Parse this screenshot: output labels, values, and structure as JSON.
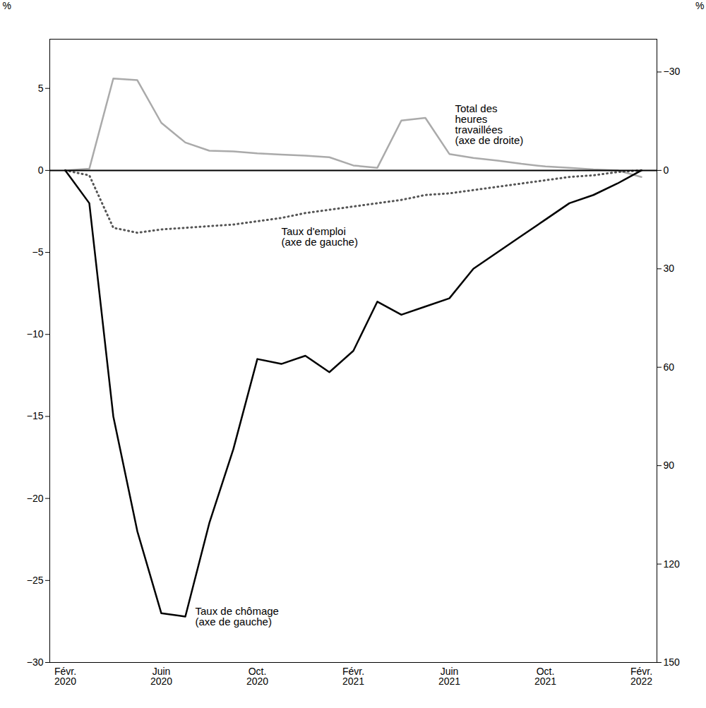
{
  "chart_data": {
    "type": "line",
    "categories": [
      "Févr.\n2020",
      null,
      null,
      null,
      "Juin\n2020",
      null,
      null,
      null,
      "Oct.\n2020",
      null,
      null,
      null,
      "Févr.\n2021",
      null,
      null,
      null,
      "Juin\n2021",
      null,
      null,
      null,
      "Oct.\n2021",
      null,
      null,
      null,
      "Févr.\n2022"
    ],
    "ylabel": "%",
    "y2label": "%",
    "ylim": [
      -30,
      8
    ],
    "yticks": [
      -30,
      -25,
      -20,
      -15,
      -10,
      -5,
      0,
      5
    ],
    "y2lim": [
      150,
      -40
    ],
    "y2ticks": [
      150,
      120,
      90,
      60,
      30,
      0,
      -30
    ],
    "grid": false,
    "series": [
      {
        "name": "Total des\nheures\ntravaillées\n(axe de droite)",
        "axis": "y2",
        "color": "#aaaaaa",
        "line_style": "solid",
        "values": [
          0.0,
          -0.5,
          -28.0,
          -27.5,
          -14.5,
          -8.5,
          -6.0,
          -5.8,
          -5.2,
          -4.8,
          -4.5,
          -4.0,
          -1.5,
          -0.8,
          -15.2,
          -16.0,
          -5.0,
          -3.8,
          -3.0,
          -2.0,
          -1.2,
          -0.8,
          -0.3,
          0.0,
          2.0
        ]
      },
      {
        "name": "Taux d'emploi\n(axe de gauche)",
        "color": "#555555",
        "line_style": "dotted",
        "values": [
          0.0,
          -0.3,
          -3.5,
          -3.8,
          -3.6,
          -3.5,
          -3.4,
          -3.3,
          -3.1,
          -2.9,
          -2.6,
          -2.4,
          -2.2,
          -2.0,
          -1.8,
          -1.5,
          -1.4,
          -1.2,
          -1.0,
          -0.8,
          -0.6,
          -0.4,
          -0.3,
          -0.1,
          0.0
        ]
      },
      {
        "name": "Taux de chômage\n(axe de gauche)",
        "color": "#000000",
        "line_style": "solid",
        "values": [
          0.0,
          -2.0,
          -15.0,
          -22.0,
          -27.0,
          -27.2,
          -21.5,
          -17.0,
          -11.5,
          -11.8,
          -11.3,
          -12.3,
          -11.0,
          -8.0,
          -8.8,
          -8.3,
          -7.8,
          -6.0,
          -5.0,
          -4.0,
          -3.0,
          -2.0,
          -1.5,
          -0.8,
          0.0
        ]
      }
    ]
  }
}
